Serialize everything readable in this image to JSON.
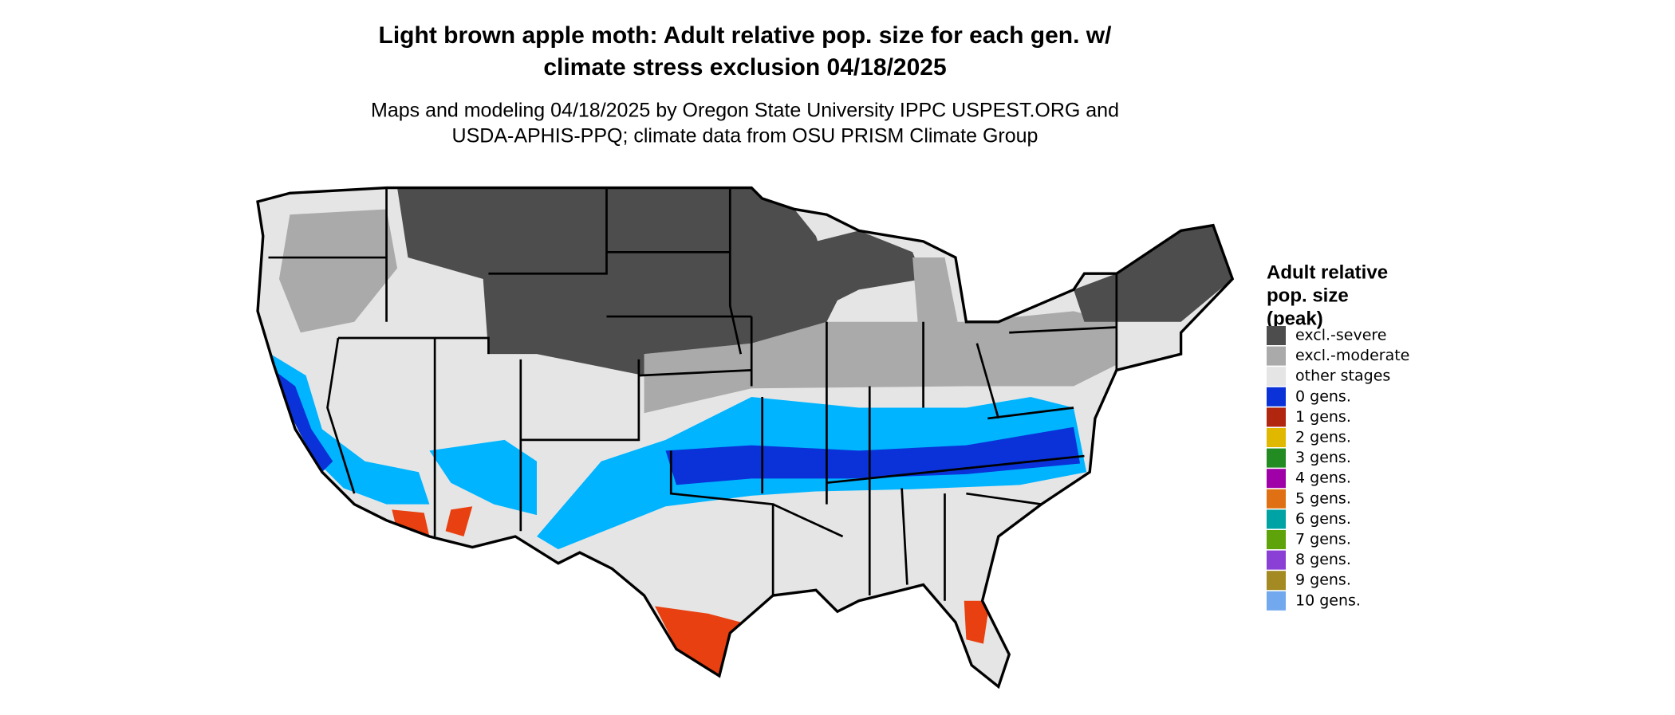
{
  "title": [
    "Light brown apple moth: Adult relative pop. size for each gen. w/",
    "climate stress exclusion 04/18/2025"
  ],
  "subtitle": [
    "Maps and modeling 04/18/2025 by Oregon State University IPPC USPEST.ORG and",
    "USDA-APHIS-PPQ; climate data from OSU PRISM Climate Group"
  ],
  "legend": {
    "title": [
      "Adult relative",
      "pop. size",
      "(peak)"
    ],
    "items": [
      {
        "label": "excl.-severe",
        "color": "#4d4d4d"
      },
      {
        "label": "excl.-moderate",
        "color": "#aaaaaa"
      },
      {
        "label": "other stages",
        "color": "#e5e5e5"
      },
      {
        "label": "0 gens.",
        "color": "#0a32d8"
      },
      {
        "label": "1 gens.",
        "color": "#b0260f"
      },
      {
        "label": "2 gens.",
        "color": "#e0b800"
      },
      {
        "label": "3 gens.",
        "color": "#228b22"
      },
      {
        "label": "4 gens.",
        "color": "#a000a8"
      },
      {
        "label": "5 gens.",
        "color": "#e07014"
      },
      {
        "label": "6 gens.",
        "color": "#00a3a3"
      },
      {
        "label": "7 gens.",
        "color": "#5fa30a"
      },
      {
        "label": "8 gens.",
        "color": "#8a40d4"
      },
      {
        "label": "9 gens.",
        "color": "#a48a22"
      },
      {
        "label": "10 gens.",
        "color": "#72a8ee"
      }
    ]
  }
}
